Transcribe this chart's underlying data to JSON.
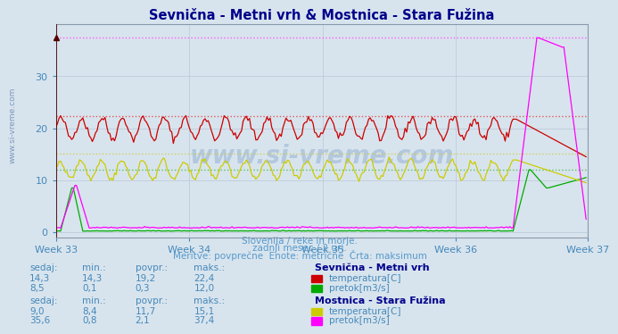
{
  "title": "Sevnična - Metni vrh & Mostnica - Stara Fužina",
  "subtitle1": "Slovenija / reke in morje.",
  "subtitle2": "zadnji mesec / 2 uri.",
  "subtitle3": "Meritve: povprečne  Enote: metrične  Črta: maksimum",
  "xlabel_weeks": [
    "Week 33",
    "Week 34",
    "Week 35",
    "Week 36",
    "Week 37"
  ],
  "yticks": [
    0,
    10,
    20,
    30
  ],
  "ylim": [
    -1,
    40
  ],
  "xlim": [
    0,
    335
  ],
  "week_positions": [
    0,
    84,
    168,
    252,
    335
  ],
  "bg_color": "#d8e4ed",
  "plot_bg_color": "#d8e4ed",
  "grid_color": "#b8c8d8",
  "title_color": "#00008b",
  "text_color": "#4488bb",
  "label_color": "#5599cc",
  "watermark": "www.si-vreme.com",
  "series": {
    "sev_temp": {
      "color": "#cc0000",
      "hline_color": "#dd4444",
      "hline_style": ":",
      "max": 22.4
    },
    "sev_pretok": {
      "color": "#00aa00",
      "hline_color": "#44bb44",
      "hline_style": ":",
      "max": 12.0
    },
    "most_temp": {
      "color": "#cccc00",
      "hline_color": "#cccc44",
      "hline_style": ":",
      "max": 15.1
    },
    "most_pretok": {
      "color": "#ff00ff",
      "hline_color": "#ff44ff",
      "hline_style": ":",
      "max": 37.4
    }
  },
  "legend_table": {
    "col_headers": [
      "sedaj:",
      "min.:",
      "povpr.:",
      "maks.:"
    ],
    "sev_label": "Sevnična - Metni vrh",
    "sev_temp_vals": [
      "14,3",
      "14,3",
      "19,2",
      "22,4"
    ],
    "sev_pretok_vals": [
      "8,5",
      "0,1",
      "0,3",
      "12,0"
    ],
    "sev_temp_label": "temperatura[C]",
    "sev_pretok_label": "pretok[m3/s]",
    "most_label": "Mostnica - Stara Fužina",
    "most_temp_vals": [
      "9,0",
      "8,4",
      "11,7",
      "15,1"
    ],
    "most_pretok_vals": [
      "35,6",
      "0,8",
      "2,1",
      "37,4"
    ],
    "most_temp_label": "temperatura[C]",
    "most_pretok_label": "pretok[m3/s]"
  }
}
